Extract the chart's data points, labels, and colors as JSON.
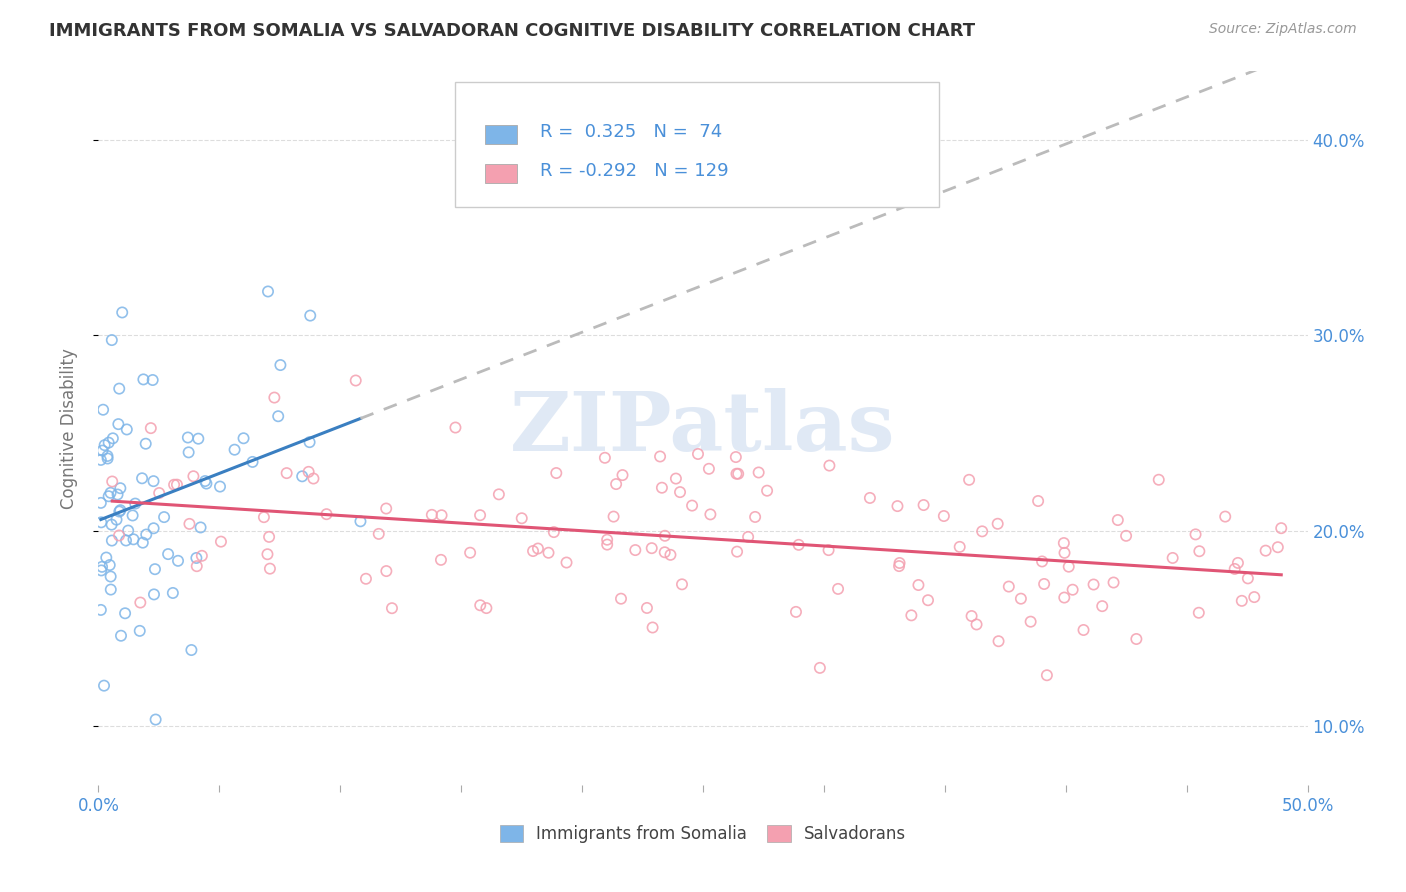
{
  "title": "IMMIGRANTS FROM SOMALIA VS SALVADORAN COGNITIVE DISABILITY CORRELATION CHART",
  "source": "Source: ZipAtlas.com",
  "ylabel": "Cognitive Disability",
  "right_yticks": [
    "10.0%",
    "20.0%",
    "30.0%",
    "40.0%"
  ],
  "right_ytick_vals": [
    0.1,
    0.2,
    0.3,
    0.4
  ],
  "xlim": [
    0.0,
    0.5
  ],
  "ylim": [
    0.07,
    0.435
  ],
  "somalia_R": 0.325,
  "somalia_N": 74,
  "salvadoran_R": -0.292,
  "salvadoran_N": 129,
  "somalia_color": "#7EB5E8",
  "salvadoran_color": "#F4A0B0",
  "somalia_line_color": "#3A7FC1",
  "salvadoran_line_color": "#E05575",
  "trend_extension_color": "#BBBBBB",
  "watermark_text": "ZIPatlas",
  "legend_label_somalia": "Immigrants from Somalia",
  "legend_label_salvadoran": "Salvadorans",
  "background_color": "#FFFFFF",
  "grid_color": "#DDDDDD",
  "title_color": "#333333",
  "axis_label_color": "#777777",
  "right_tick_color": "#4A90D9",
  "bottom_label_color": "#4A90D9"
}
